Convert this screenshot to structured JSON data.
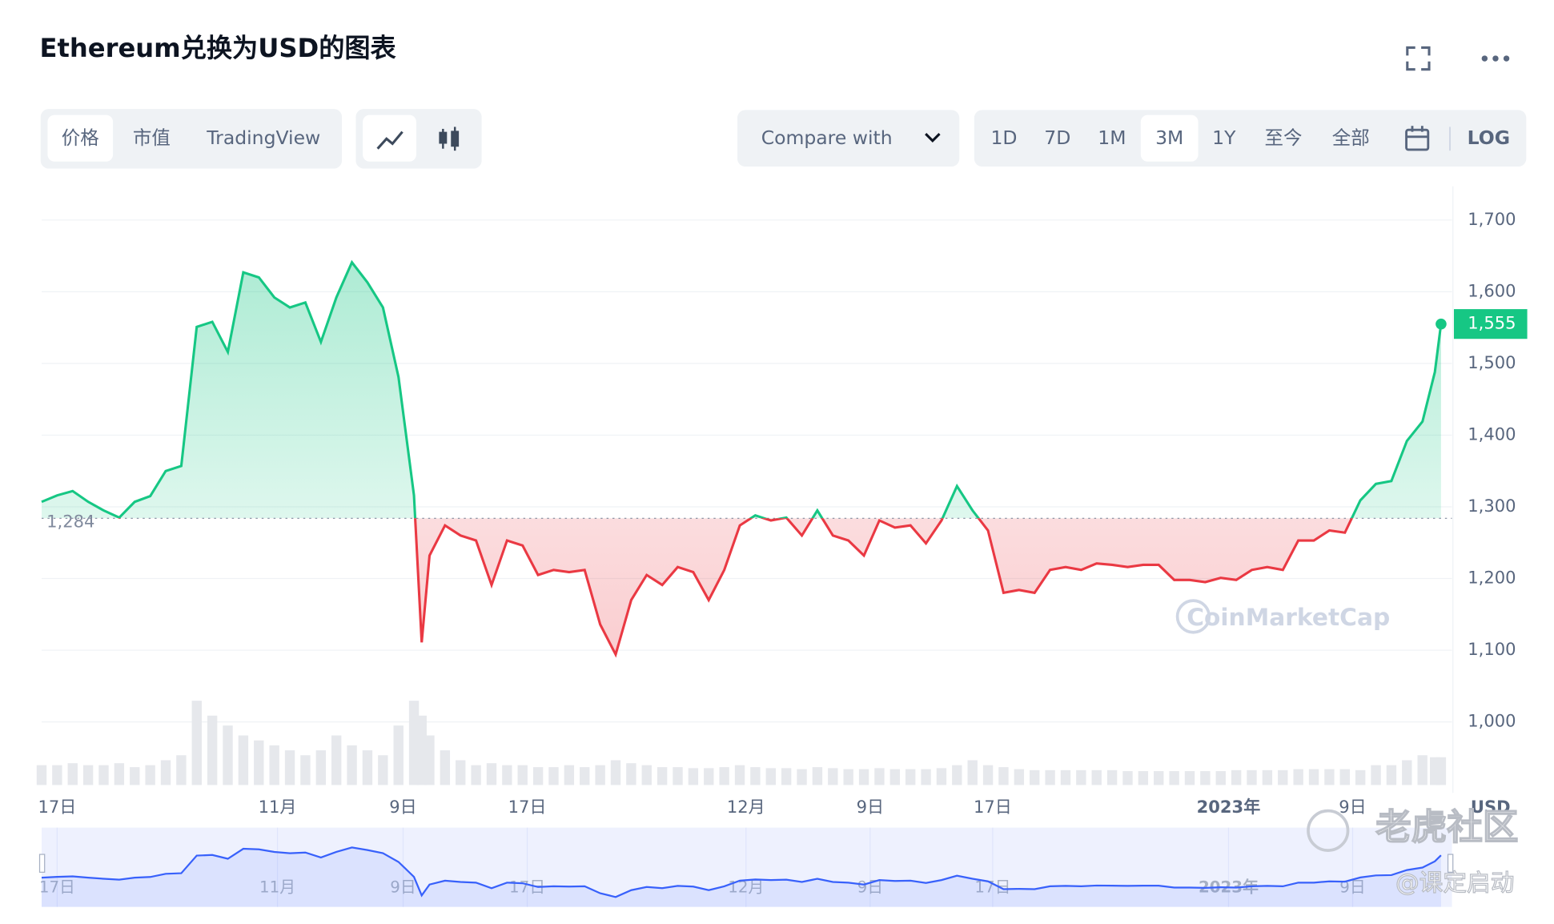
{
  "header": {
    "title": "Ethereum兑换为USD的图表",
    "tabs": [
      "价格",
      "市值",
      "TradingView"
    ],
    "compare": "Compare with",
    "ranges": [
      "1D",
      "7D",
      "1M",
      "3M",
      "1Y",
      "至今",
      "全部"
    ],
    "log": "LOG"
  },
  "watermark": "CoinMarketCap",
  "overlay": {
    "brand": "老虎社区",
    "author": "@课定启动"
  },
  "chart_data": {
    "type": "line",
    "title": "Ethereum兑换为USD的图表",
    "x": [
      0,
      1,
      2,
      3,
      4,
      5,
      6,
      7,
      8,
      9,
      10,
      11,
      12,
      13,
      14,
      15,
      16,
      17,
      18,
      19,
      20,
      21,
      22,
      23,
      24,
      24.5,
      25,
      26,
      27,
      28,
      29,
      30,
      31,
      32,
      33,
      34,
      35,
      36,
      37,
      38,
      39,
      40,
      41,
      42,
      43,
      44,
      45,
      46,
      47,
      48,
      49,
      50,
      51,
      52,
      53,
      54,
      55,
      56,
      57,
      58,
      59,
      60,
      61,
      62,
      63,
      64,
      65,
      66,
      67,
      68,
      69,
      70,
      71,
      72,
      73,
      74,
      75,
      76,
      77,
      78,
      79,
      80,
      81,
      82,
      83,
      84,
      85,
      86,
      87,
      88,
      89,
      89.8,
      90.2
    ],
    "values": [
      1307,
      1316,
      1322,
      1307,
      1295,
      1285,
      1307,
      1315,
      1350,
      1357,
      1551,
      1558,
      1516,
      1627,
      1620,
      1592,
      1578,
      1585,
      1530,
      1592,
      1641,
      1613,
      1578,
      1481,
      1316,
      1111,
      1232,
      1274,
      1260,
      1253,
      1191,
      1253,
      1246,
      1205,
      1212,
      1209,
      1212,
      1136,
      1094,
      1170,
      1205,
      1191,
      1216,
      1209,
      1170,
      1212,
      1274,
      1288,
      1281,
      1285,
      1260,
      1295,
      1260,
      1253,
      1232,
      1281,
      1271,
      1274,
      1249,
      1281,
      1329,
      1295,
      1267,
      1180,
      1184,
      1180,
      1212,
      1216,
      1212,
      1221,
      1219,
      1216,
      1219,
      1219,
      1198,
      1198,
      1195,
      1201,
      1198,
      1212,
      1216,
      1212,
      1253,
      1253,
      1267,
      1264,
      1309,
      1332,
      1336,
      1392,
      1419,
      1488,
      1555
    ],
    "volume": [
      20,
      20,
      22,
      20,
      20,
      22,
      18,
      20,
      25,
      30,
      85,
      70,
      60,
      50,
      45,
      40,
      35,
      30,
      35,
      50,
      40,
      35,
      30,
      60,
      85,
      70,
      50,
      35,
      25,
      20,
      22,
      20,
      20,
      18,
      18,
      20,
      18,
      20,
      25,
      22,
      20,
      18,
      18,
      17,
      17,
      18,
      20,
      18,
      17,
      17,
      16,
      18,
      17,
      16,
      16,
      17,
      16,
      16,
      16,
      17,
      20,
      25,
      20,
      18,
      16,
      15,
      15,
      15,
      15,
      15,
      15,
      14,
      14,
      14,
      14,
      14,
      14,
      14,
      15,
      15,
      15,
      15,
      16,
      16,
      16,
      16,
      15,
      20,
      20,
      25,
      30,
      28,
      28
    ],
    "volume_lim": [
      0,
      100
    ],
    "up_color": "#16c784",
    "down_color": "#ea3943",
    "nav_color": "#3861fb",
    "baseline": 1284,
    "baseline_label": "1,284",
    "last_label": "1,555",
    "xlim": [
      0,
      90.9
    ],
    "xticks": [
      {
        "value": 1,
        "label": "17日"
      },
      {
        "value": 15.2,
        "label": "11月"
      },
      {
        "value": 23.3,
        "label": "9日"
      },
      {
        "value": 31.3,
        "label": "17日"
      },
      {
        "value": 45.4,
        "label": "12月"
      },
      {
        "value": 53.4,
        "label": "9日"
      },
      {
        "value": 61.3,
        "label": "17日"
      },
      {
        "value": 76.5,
        "label": "2023年"
      },
      {
        "value": 84.5,
        "label": "9日"
      }
    ],
    "ylim": [
      912,
      1747
    ],
    "yticks": [
      {
        "value": 1000,
        "label": "1,000"
      },
      {
        "value": 1100,
        "label": "1,100"
      },
      {
        "value": 1200,
        "label": "1,200"
      },
      {
        "value": 1300,
        "label": "1,300"
      },
      {
        "value": 1400,
        "label": "1,400"
      },
      {
        "value": 1500,
        "label": "1,500"
      },
      {
        "value": 1600,
        "label": "1,600"
      },
      {
        "value": 1700,
        "label": "1,700"
      }
    ],
    "y_unit": "USD",
    "grid": true
  }
}
